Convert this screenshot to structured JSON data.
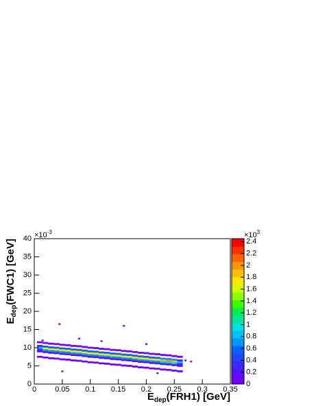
{
  "chart_data": {
    "type": "heatmap2d",
    "x_label": {
      "main": "E",
      "sub": "dep",
      "rest": "(FRH1) [GeV]"
    },
    "y_label": {
      "main": "E",
      "sub": "dep",
      "rest": "(FWC1) [GeV]"
    },
    "y_multiplier": {
      "base": "×10",
      "exp": "-3"
    },
    "z_multiplier": {
      "base": "×10",
      "exp": "3"
    },
    "xlim": [
      0,
      0.35
    ],
    "xticks": [
      0,
      0.05,
      0.1,
      0.15,
      0.2,
      0.25,
      0.3,
      0.35
    ],
    "ylim": [
      0,
      40
    ],
    "yticks": [
      0,
      5,
      10,
      15,
      20,
      25,
      30,
      35,
      40
    ],
    "zlim": [
      0,
      2.45
    ],
    "zticks": [
      0,
      0.2,
      0.4,
      0.6,
      0.8,
      1,
      1.2,
      1.4,
      1.6,
      1.8,
      2,
      2.2,
      2.4
    ],
    "palette": [
      "#7000ff",
      "#5a10ff",
      "#3c28ff",
      "#2046ff",
      "#0064ff",
      "#0096ff",
      "#00c0ff",
      "#00e0e0",
      "#00e69a",
      "#00ee50",
      "#3cfa00",
      "#8cff00",
      "#d2ff00",
      "#ffe600",
      "#ffbe00",
      "#ff9600",
      "#ff6400",
      "#ff3200",
      "#ff0000"
    ],
    "columns": [
      {
        "x": 0.01,
        "y": [
          7.5,
          9.0,
          9.5,
          10.0,
          10.5,
          11.5
        ],
        "z": [
          0.03,
          0.1,
          0.3,
          0.8,
          0.3,
          0.05
        ]
      },
      {
        "x": 0.02,
        "y": [
          7.3,
          8.8,
          9.3,
          9.8,
          10.3,
          11.3
        ],
        "z": [
          0.05,
          0.2,
          0.7,
          1.6,
          0.6,
          0.1
        ]
      },
      {
        "x": 0.03,
        "y": [
          7.1,
          8.6,
          9.1,
          9.6,
          10.1,
          11.1
        ],
        "z": [
          0.05,
          0.2,
          0.7,
          1.7,
          0.6,
          0.1
        ]
      },
      {
        "x": 0.04,
        "y": [
          7.0,
          8.5,
          9.0,
          9.5,
          10.0,
          11.0
        ],
        "z": [
          0.05,
          0.2,
          0.7,
          1.7,
          0.6,
          0.1
        ]
      },
      {
        "x": 0.05,
        "y": [
          6.8,
          8.3,
          8.8,
          9.3,
          9.8,
          10.8
        ],
        "z": [
          0.05,
          0.2,
          0.7,
          1.7,
          0.6,
          0.1
        ]
      },
      {
        "x": 0.06,
        "y": [
          6.7,
          8.2,
          8.7,
          9.2,
          9.7,
          10.7
        ],
        "z": [
          0.05,
          0.2,
          0.7,
          1.7,
          0.6,
          0.1
        ]
      },
      {
        "x": 0.07,
        "y": [
          6.5,
          8.0,
          8.5,
          9.0,
          9.5,
          10.5
        ],
        "z": [
          0.05,
          0.2,
          0.7,
          1.7,
          0.6,
          0.1
        ]
      },
      {
        "x": 0.08,
        "y": [
          6.4,
          7.9,
          8.4,
          8.9,
          9.4,
          10.4
        ],
        "z": [
          0.05,
          0.2,
          0.7,
          1.7,
          0.6,
          0.1
        ]
      },
      {
        "x": 0.09,
        "y": [
          6.2,
          7.7,
          8.2,
          8.7,
          9.2,
          10.2
        ],
        "z": [
          0.05,
          0.2,
          0.7,
          1.7,
          0.6,
          0.1
        ]
      },
      {
        "x": 0.1,
        "y": [
          6.0,
          7.5,
          8.0,
          8.5,
          9.0,
          10.0
        ],
        "z": [
          0.05,
          0.2,
          0.7,
          1.7,
          0.6,
          0.1
        ]
      },
      {
        "x": 0.11,
        "y": [
          5.9,
          7.4,
          7.9,
          8.4,
          8.9,
          9.9
        ],
        "z": [
          0.05,
          0.2,
          0.7,
          1.7,
          0.6,
          0.1
        ]
      },
      {
        "x": 0.12,
        "y": [
          5.7,
          7.2,
          7.7,
          8.2,
          8.7,
          9.7
        ],
        "z": [
          0.05,
          0.2,
          0.7,
          1.7,
          0.6,
          0.1
        ]
      },
      {
        "x": 0.13,
        "y": [
          5.6,
          7.1,
          7.6,
          8.1,
          8.6,
          9.6
        ],
        "z": [
          0.05,
          0.2,
          0.7,
          1.7,
          0.6,
          0.1
        ]
      },
      {
        "x": 0.14,
        "y": [
          5.4,
          6.9,
          7.4,
          7.9,
          8.4,
          9.4
        ],
        "z": [
          0.05,
          0.2,
          0.7,
          1.7,
          0.6,
          0.1
        ]
      },
      {
        "x": 0.15,
        "y": [
          5.3,
          6.8,
          7.3,
          7.8,
          8.3,
          9.3
        ],
        "z": [
          0.05,
          0.2,
          0.7,
          1.7,
          0.6,
          0.1
        ]
      },
      {
        "x": 0.16,
        "y": [
          5.1,
          6.6,
          7.1,
          7.6,
          8.1,
          9.1
        ],
        "z": [
          0.05,
          0.2,
          0.7,
          1.7,
          0.6,
          0.1
        ]
      },
      {
        "x": 0.17,
        "y": [
          5.0,
          6.5,
          7.0,
          7.5,
          8.0,
          9.0
        ],
        "z": [
          0.05,
          0.2,
          0.7,
          1.7,
          0.6,
          0.1
        ]
      },
      {
        "x": 0.18,
        "y": [
          4.8,
          6.3,
          6.8,
          7.3,
          7.8,
          8.8
        ],
        "z": [
          0.05,
          0.2,
          0.7,
          1.7,
          0.6,
          0.1
        ]
      },
      {
        "x": 0.19,
        "y": [
          4.6,
          6.1,
          6.6,
          7.1,
          7.6,
          8.6
        ],
        "z": [
          0.05,
          0.2,
          0.7,
          1.8,
          0.6,
          0.1
        ]
      },
      {
        "x": 0.2,
        "y": [
          4.5,
          6.0,
          6.5,
          7.0,
          7.5,
          8.5
        ],
        "z": [
          0.05,
          0.2,
          0.7,
          1.8,
          0.6,
          0.1
        ]
      },
      {
        "x": 0.21,
        "y": [
          4.3,
          5.8,
          6.3,
          6.8,
          7.3,
          8.3
        ],
        "z": [
          0.05,
          0.2,
          0.7,
          1.8,
          0.6,
          0.1
        ]
      },
      {
        "x": 0.22,
        "y": [
          4.2,
          5.7,
          6.2,
          6.7,
          7.2,
          8.2
        ],
        "z": [
          0.05,
          0.2,
          0.7,
          1.8,
          0.6,
          0.1
        ]
      },
      {
        "x": 0.23,
        "y": [
          4.0,
          5.5,
          6.0,
          6.5,
          7.0,
          8.0
        ],
        "z": [
          0.05,
          0.2,
          0.8,
          1.9,
          0.7,
          0.1
        ]
      },
      {
        "x": 0.24,
        "y": [
          3.9,
          5.4,
          5.9,
          6.4,
          6.9,
          7.9
        ],
        "z": [
          0.05,
          0.2,
          0.8,
          2.0,
          0.7,
          0.1
        ]
      },
      {
        "x": 0.25,
        "y": [
          3.7,
          5.2,
          5.7,
          6.2,
          6.7,
          7.7
        ],
        "z": [
          0.05,
          0.2,
          0.8,
          1.9,
          0.7,
          0.1
        ]
      },
      {
        "x": 0.26,
        "y": [
          3.5,
          5.0,
          5.5,
          6.0,
          6.5,
          7.5
        ],
        "z": [
          0.02,
          0.1,
          0.3,
          0.9,
          0.3,
          0.03
        ]
      }
    ],
    "outliers": {
      "x": [
        0.045,
        0.16,
        0.08,
        0.2,
        0.27,
        0.28,
        0.015,
        0.12,
        0.05,
        0.22
      ],
      "y": [
        16.5,
        16,
        12.5,
        11,
        6.5,
        6.2,
        12,
        11.8,
        3.5,
        3
      ],
      "z": [
        0.01,
        0.01,
        0.01,
        0.01,
        0.02,
        0.01,
        0.01,
        0.01,
        0.01,
        0.01
      ]
    }
  }
}
